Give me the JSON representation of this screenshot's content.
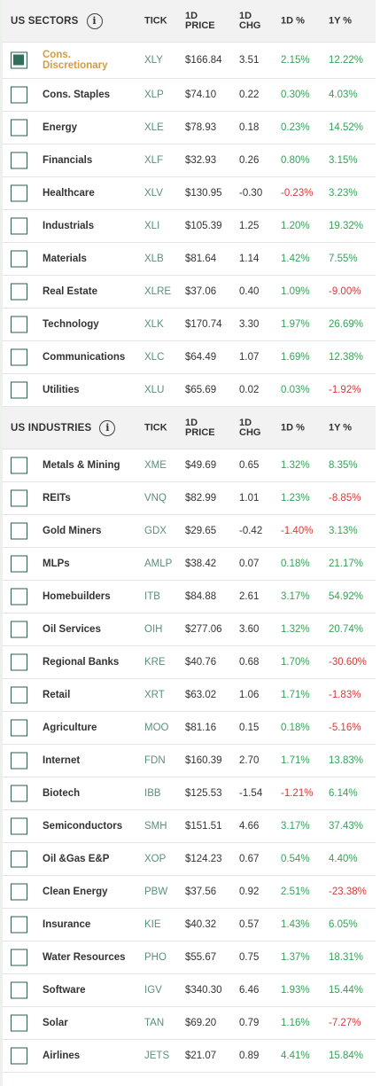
{
  "sectors": {
    "title": "US SECTORS",
    "headers": {
      "tick": "TICK",
      "price": "1D PRICE",
      "chg": "1D CHG",
      "pct1d": "1D %",
      "pct1y": "1Y %"
    },
    "rows": [
      {
        "name": "Cons. Discretionary",
        "tick": "XLY",
        "price": "$166.84",
        "chg": "3.51",
        "pct1d": "2.15%",
        "pct1y": "12.22%",
        "checked": true
      },
      {
        "name": "Cons. Staples",
        "tick": "XLP",
        "price": "$74.10",
        "chg": "0.22",
        "pct1d": "0.30%",
        "pct1y": "4.03%"
      },
      {
        "name": "Energy",
        "tick": "XLE",
        "price": "$78.93",
        "chg": "0.18",
        "pct1d": "0.23%",
        "pct1y": "14.52%"
      },
      {
        "name": "Financials",
        "tick": "XLF",
        "price": "$32.93",
        "chg": "0.26",
        "pct1d": "0.80%",
        "pct1y": "3.15%"
      },
      {
        "name": "Healthcare",
        "tick": "XLV",
        "price": "$130.95",
        "chg": "-0.30",
        "pct1d": "-0.23%",
        "pct1y": "3.23%"
      },
      {
        "name": "Industrials",
        "tick": "XLI",
        "price": "$105.39",
        "chg": "1.25",
        "pct1d": "1.20%",
        "pct1y": "19.32%"
      },
      {
        "name": "Materials",
        "tick": "XLB",
        "price": "$81.64",
        "chg": "1.14",
        "pct1d": "1.42%",
        "pct1y": "7.55%"
      },
      {
        "name": "Real Estate",
        "tick": "XLRE",
        "price": "$37.06",
        "chg": "0.40",
        "pct1d": "1.09%",
        "pct1y": "-9.00%"
      },
      {
        "name": "Technology",
        "tick": "XLK",
        "price": "$170.74",
        "chg": "3.30",
        "pct1d": "1.97%",
        "pct1y": "26.69%"
      },
      {
        "name": "Communications",
        "tick": "XLC",
        "price": "$64.49",
        "chg": "1.07",
        "pct1d": "1.69%",
        "pct1y": "12.38%"
      },
      {
        "name": "Utilities",
        "tick": "XLU",
        "price": "$65.69",
        "chg": "0.02",
        "pct1d": "0.03%",
        "pct1y": "-1.92%"
      }
    ]
  },
  "industries": {
    "title": "US INDUSTRIES",
    "headers": {
      "tick": "TICK",
      "price": "1D PRICE",
      "chg": "1D CHG",
      "pct1d": "1D %",
      "pct1y": "1Y %"
    },
    "rows": [
      {
        "name": "Metals & Mining",
        "tick": "XME",
        "price": "$49.69",
        "chg": "0.65",
        "pct1d": "1.32%",
        "pct1y": "8.35%"
      },
      {
        "name": "REITs",
        "tick": "VNQ",
        "price": "$82.99",
        "chg": "1.01",
        "pct1d": "1.23%",
        "pct1y": "-8.85%"
      },
      {
        "name": "Gold Miners",
        "tick": "GDX",
        "price": "$29.65",
        "chg": "-0.42",
        "pct1d": "-1.40%",
        "pct1y": "3.13%"
      },
      {
        "name": "MLPs",
        "tick": "AMLP",
        "price": "$38.42",
        "chg": "0.07",
        "pct1d": "0.18%",
        "pct1y": "21.17%"
      },
      {
        "name": "Homebuilders",
        "tick": "ITB",
        "price": "$84.88",
        "chg": "2.61",
        "pct1d": "3.17%",
        "pct1y": "54.92%"
      },
      {
        "name": "Oil Services",
        "tick": "OIH",
        "price": "$277.06",
        "chg": "3.60",
        "pct1d": "1.32%",
        "pct1y": "20.74%"
      },
      {
        "name": "Regional Banks",
        "tick": "KRE",
        "price": "$40.76",
        "chg": "0.68",
        "pct1d": "1.70%",
        "pct1y": "-30.60%"
      },
      {
        "name": "Retail",
        "tick": "XRT",
        "price": "$63.02",
        "chg": "1.06",
        "pct1d": "1.71%",
        "pct1y": "-1.83%"
      },
      {
        "name": "Agriculture",
        "tick": "MOO",
        "price": "$81.16",
        "chg": "0.15",
        "pct1d": "0.18%",
        "pct1y": "-5.16%"
      },
      {
        "name": "Internet",
        "tick": "FDN",
        "price": "$160.39",
        "chg": "2.70",
        "pct1d": "1.71%",
        "pct1y": "13.83%"
      },
      {
        "name": "Biotech",
        "tick": "IBB",
        "price": "$125.53",
        "chg": "-1.54",
        "pct1d": "-1.21%",
        "pct1y": "6.14%"
      },
      {
        "name": "Semiconductors",
        "tick": "SMH",
        "price": "$151.51",
        "chg": "4.66",
        "pct1d": "3.17%",
        "pct1y": "37.43%"
      },
      {
        "name": "Oil &Gas E&P",
        "tick": "XOP",
        "price": "$124.23",
        "chg": "0.67",
        "pct1d": "0.54%",
        "pct1y": "4.40%"
      },
      {
        "name": "Clean Energy",
        "tick": "PBW",
        "price": "$37.56",
        "chg": "0.92",
        "pct1d": "2.51%",
        "pct1y": "-23.38%"
      },
      {
        "name": "Insurance",
        "tick": "KIE",
        "price": "$40.32",
        "chg": "0.57",
        "pct1d": "1.43%",
        "pct1y": "6.05%"
      },
      {
        "name": "Water Resources",
        "tick": "PHO",
        "price": "$55.67",
        "chg": "0.75",
        "pct1d": "1.37%",
        "pct1y": "18.31%"
      },
      {
        "name": "Software",
        "tick": "IGV",
        "price": "$340.30",
        "chg": "6.46",
        "pct1d": "1.93%",
        "pct1y": "15.44%"
      },
      {
        "name": "Solar",
        "tick": "TAN",
        "price": "$69.20",
        "chg": "0.79",
        "pct1d": "1.16%",
        "pct1y": "-7.27%"
      },
      {
        "name": "Airlines",
        "tick": "JETS",
        "price": "$21.07",
        "chg": "0.89",
        "pct1d": "4.41%",
        "pct1y": "15.84%"
      }
    ]
  },
  "icons": {
    "info": "info-icon",
    "checkbox": "checkbox-icon"
  },
  "colors": {
    "positive": "#3aa05a",
    "negative": "#d63a3a",
    "selected_name": "#d99b3c",
    "tick": "#5a8f7a",
    "checkbox_fill": "#2f6f5c"
  }
}
